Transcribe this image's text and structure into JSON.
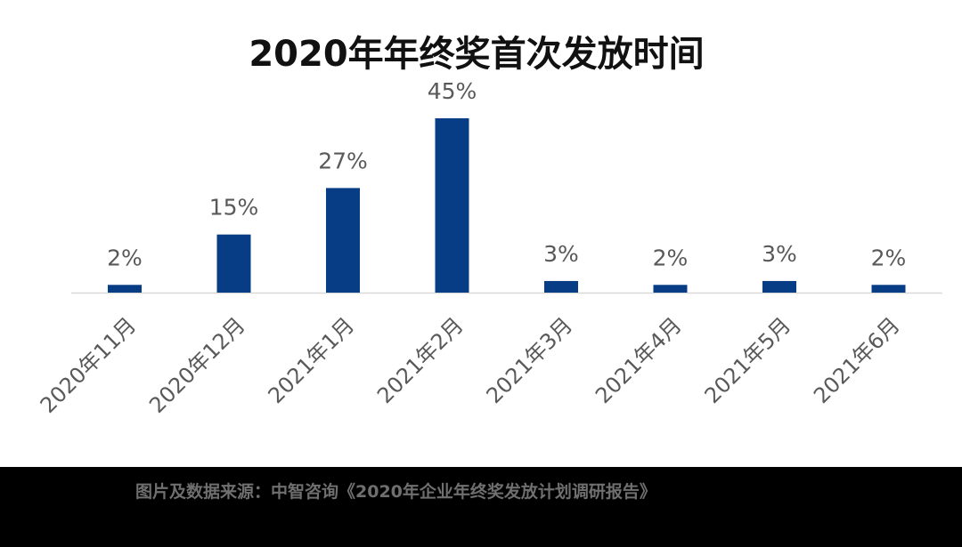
{
  "chart_data": {
    "type": "bar",
    "title": "2020年年终奖首次发放时间",
    "categories": [
      "2020年11月",
      "2020年12月",
      "2021年1月",
      "2021年2月",
      "2021年3月",
      "2021年4月",
      "2021年5月",
      "2021年6月"
    ],
    "values": [
      2,
      15,
      27,
      45,
      3,
      2,
      3,
      2
    ],
    "value_labels": [
      "2%",
      "15%",
      "27%",
      "45%",
      "3%",
      "2%",
      "3%",
      "2%"
    ],
    "unit": "%",
    "ylim": [
      0,
      45
    ],
    "grid": false,
    "legend": "none",
    "colors": {
      "bar": "#073D84",
      "axis": "#D9D9D9",
      "label": "#595959"
    }
  },
  "footer": {
    "source": "图片及数据来源：中智咨询《2020年企业年终奖发放计划调研报告》"
  }
}
